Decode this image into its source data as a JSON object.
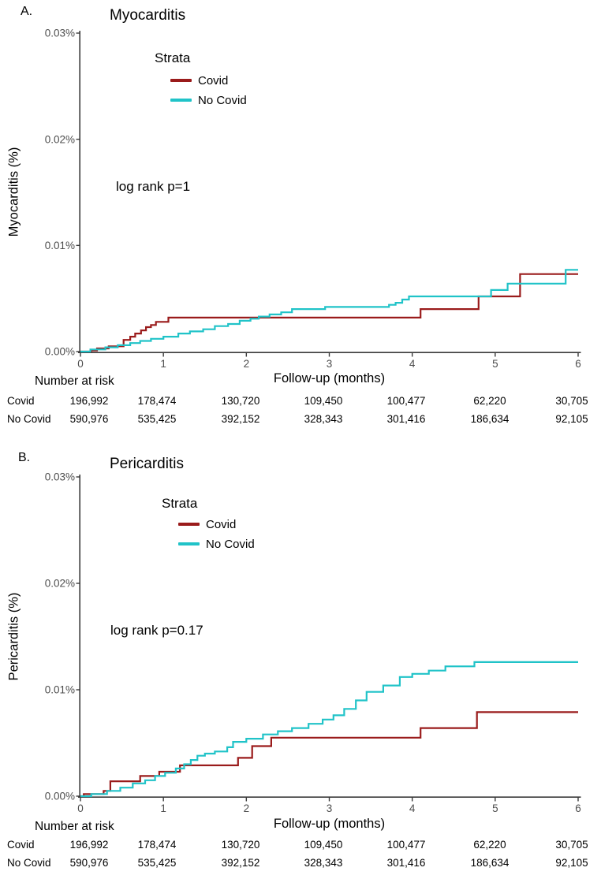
{
  "figure": {
    "background": "#ffffff",
    "axis_color": "#3b3b3b",
    "tick_text_color": "#4d4d4d"
  },
  "risk_table": {
    "title": "Number at risk",
    "rows": [
      {
        "label": "Covid",
        "values": [
          "196,992",
          "178,474",
          "130,720",
          "109,450",
          "100,477",
          "62,220",
          "30,705"
        ]
      },
      {
        "label": "No Covid",
        "values": [
          "590,976",
          "535,425",
          "392,152",
          "328,343",
          "301,416",
          "186,634",
          "92,105"
        ]
      }
    ]
  },
  "chart_data": [
    {
      "panel_label": "A.",
      "title": "Myocarditis",
      "type": "line",
      "line_style": "step-after (Kaplan-Meier cumulative incidence)",
      "xlabel": "Follow-up (months)",
      "ylabel": "Myocarditis (%)",
      "xlim": [
        0,
        6
      ],
      "ylim_percent": [
        0,
        0.03
      ],
      "x_ticks": [
        0,
        1,
        2,
        3,
        4,
        5,
        6
      ],
      "y_ticks": [
        {
          "label": "0.00%",
          "value": 0
        },
        {
          "label": "0.01%",
          "value": 0.01
        },
        {
          "label": "0.02%",
          "value": 0.02
        },
        {
          "label": "0.03%",
          "value": 0.03
        }
      ],
      "legend_title": "Strata",
      "legend_position": "inside-upper-left",
      "grid": false,
      "annotation": "log rank p=1",
      "series": [
        {
          "name": "Covid",
          "color": "#9A1B1B",
          "steps_percent": [
            [
              0,
              0
            ],
            [
              0.13,
              0.0001
            ],
            [
              0.2,
              0.0003
            ],
            [
              0.34,
              0.0005
            ],
            [
              0.52,
              0.0011
            ],
            [
              0.6,
              0.0014
            ],
            [
              0.66,
              0.0017
            ],
            [
              0.73,
              0.002
            ],
            [
              0.79,
              0.0023
            ],
            [
              0.85,
              0.0025
            ],
            [
              0.91,
              0.0028
            ],
            [
              1.06,
              0.0032
            ],
            [
              4.1,
              0.004
            ],
            [
              4.8,
              0.0052
            ],
            [
              5.3,
              0.0073
            ]
          ]
        },
        {
          "name": "No Covid",
          "color": "#20C3C8",
          "steps_percent": [
            [
              0,
              0
            ],
            [
              0.12,
              0.0002
            ],
            [
              0.3,
              0.0004
            ],
            [
              0.45,
              0.0006
            ],
            [
              0.6,
              0.0008
            ],
            [
              0.72,
              0.001
            ],
            [
              0.85,
              0.0012
            ],
            [
              1.0,
              0.0014
            ],
            [
              1.18,
              0.0017
            ],
            [
              1.32,
              0.0019
            ],
            [
              1.48,
              0.0021
            ],
            [
              1.62,
              0.0024
            ],
            [
              1.78,
              0.0026
            ],
            [
              1.92,
              0.0029
            ],
            [
              2.05,
              0.0031
            ],
            [
              2.15,
              0.0033
            ],
            [
              2.28,
              0.0035
            ],
            [
              2.42,
              0.0037
            ],
            [
              2.55,
              0.004
            ],
            [
              2.95,
              0.0042
            ],
            [
              3.72,
              0.0044
            ],
            [
              3.8,
              0.0046
            ],
            [
              3.88,
              0.0049
            ],
            [
              3.96,
              0.0052
            ],
            [
              4.95,
              0.0058
            ],
            [
              5.15,
              0.0064
            ],
            [
              5.85,
              0.0077
            ]
          ]
        }
      ]
    },
    {
      "panel_label": "B.",
      "title": "Pericarditis",
      "type": "line",
      "line_style": "step-after (Kaplan-Meier cumulative incidence)",
      "xlabel": "Follow-up (months)",
      "ylabel": "Pericarditis (%)",
      "xlim": [
        0,
        6
      ],
      "ylim_percent": [
        0,
        0.03
      ],
      "x_ticks": [
        0,
        1,
        2,
        3,
        4,
        5,
        6
      ],
      "y_ticks": [
        {
          "label": "0.00%",
          "value": 0
        },
        {
          "label": "0.01%",
          "value": 0.01
        },
        {
          "label": "0.02%",
          "value": 0.02
        },
        {
          "label": "0.03%",
          "value": 0.03
        }
      ],
      "legend_title": "Strata",
      "legend_position": "inside-upper-left",
      "grid": false,
      "annotation": "log rank p=0.17",
      "series": [
        {
          "name": "Covid",
          "color": "#9A1B1B",
          "steps_percent": [
            [
              0,
              0
            ],
            [
              0.04,
              0.0002
            ],
            [
              0.28,
              0.0005
            ],
            [
              0.36,
              0.0014
            ],
            [
              0.72,
              0.0019
            ],
            [
              0.95,
              0.0023
            ],
            [
              1.2,
              0.0029
            ],
            [
              1.9,
              0.0036
            ],
            [
              2.07,
              0.0047
            ],
            [
              2.3,
              0.0055
            ],
            [
              4.1,
              0.0064
            ],
            [
              4.78,
              0.0079
            ]
          ]
        },
        {
          "name": "No Covid",
          "color": "#20C3C8",
          "steps_percent": [
            [
              0,
              0
            ],
            [
              0.13,
              0.0002
            ],
            [
              0.32,
              0.0005
            ],
            [
              0.48,
              0.0008
            ],
            [
              0.63,
              0.0012
            ],
            [
              0.78,
              0.0015
            ],
            [
              0.9,
              0.0019
            ],
            [
              1.02,
              0.0022
            ],
            [
              1.15,
              0.0026
            ],
            [
              1.25,
              0.003
            ],
            [
              1.33,
              0.0034
            ],
            [
              1.41,
              0.0038
            ],
            [
              1.5,
              0.004
            ],
            [
              1.62,
              0.0042
            ],
            [
              1.77,
              0.0046
            ],
            [
              1.84,
              0.0051
            ],
            [
              2.0,
              0.0054
            ],
            [
              2.2,
              0.0058
            ],
            [
              2.38,
              0.0061
            ],
            [
              2.55,
              0.0064
            ],
            [
              2.75,
              0.0068
            ],
            [
              2.92,
              0.0072
            ],
            [
              3.05,
              0.0076
            ],
            [
              3.18,
              0.0082
            ],
            [
              3.32,
              0.009
            ],
            [
              3.45,
              0.0098
            ],
            [
              3.65,
              0.0104
            ],
            [
              3.85,
              0.0112
            ],
            [
              4.0,
              0.0115
            ],
            [
              4.2,
              0.0118
            ],
            [
              4.4,
              0.0122
            ],
            [
              4.75,
              0.0126
            ]
          ]
        }
      ]
    }
  ]
}
